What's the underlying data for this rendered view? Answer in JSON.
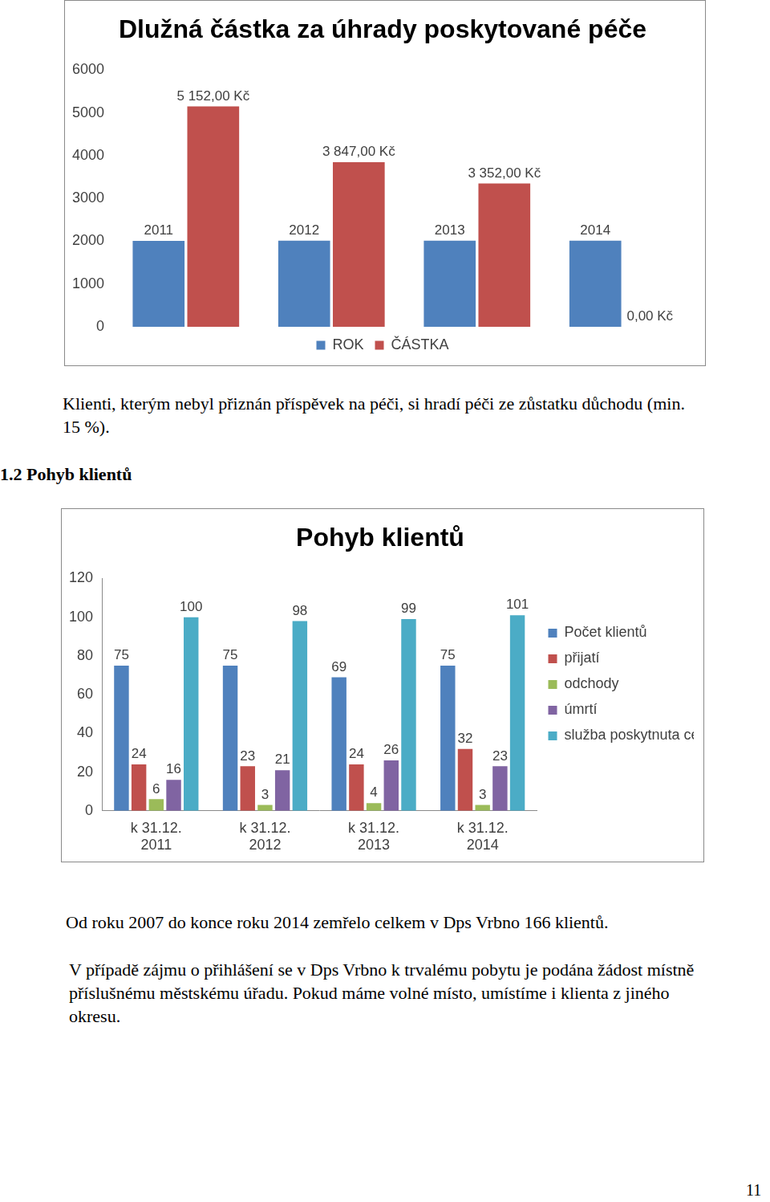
{
  "chart_data": [
    {
      "type": "bar",
      "title": "Dlužná částka za úhrady poskytované péče",
      "categories": [
        null,
        null,
        null,
        null
      ],
      "series": [
        {
          "name": "ROK",
          "color": "#4f81bd",
          "values": [
            2011,
            2012,
            2013,
            2014
          ]
        },
        {
          "name": "ČÁSTKA",
          "color": "#c0504d",
          "values": [
            5152,
            3847,
            3352,
            0
          ],
          "value_labels": [
            "5 152,00 Kč",
            "3 847,00 Kč",
            "3 352,00 Kč",
            "0,00 Kč"
          ]
        }
      ],
      "ylim": [
        0,
        6000
      ],
      "yticks": [
        0,
        1000,
        2000,
        3000,
        4000,
        5000,
        6000
      ],
      "grid": false,
      "legend": "bottom",
      "data_labels": true,
      "tick_labels": "y"
    },
    {
      "type": "bar",
      "title": "Pohyb klientů",
      "categories": [
        "k 31.12. 2011",
        "k 31.12. 2012",
        "k 31.12. 2013",
        "k 31.12. 2014"
      ],
      "series": [
        {
          "name": "Počet klientů",
          "color": "#4f81bd",
          "values": [
            75,
            75,
            69,
            75
          ]
        },
        {
          "name": "přijatí",
          "color": "#c0504d",
          "values": [
            24,
            23,
            24,
            32
          ]
        },
        {
          "name": "odchody",
          "color": "#9bbb59",
          "values": [
            6,
            3,
            4,
            3
          ]
        },
        {
          "name": "úmrtí",
          "color": "#8064a2",
          "values": [
            16,
            21,
            26,
            23
          ]
        },
        {
          "name": "služba poskytnuta celkem",
          "color": "#4bacc6",
          "values": [
            100,
            98,
            99,
            101
          ]
        }
      ],
      "ylim": [
        0,
        120
      ],
      "yticks": [
        0,
        20,
        40,
        60,
        80,
        100,
        120
      ],
      "grid": false,
      "legend": "right",
      "data_labels": true
    }
  ],
  "document": {
    "note": "Klienti, kterým nebyl přiznán příspěvek na péči, si hradí péči ze zůstatku důchodu (min. 15 %).",
    "heading": "1.2 Pohyb klientů",
    "paragraphs": [
      "Od roku 2007 do konce roku 2014 zemřelo celkem v Dps Vrbno 166 klientů.",
      "V případě zájmu o přihlášení se v Dps Vrbno k trvalému pobytu je podána žádost místně příslušnému městskému úřadu. Pokud máme volné místo, umístíme i klienta z jiného okresu."
    ],
    "page_number": 11
  }
}
